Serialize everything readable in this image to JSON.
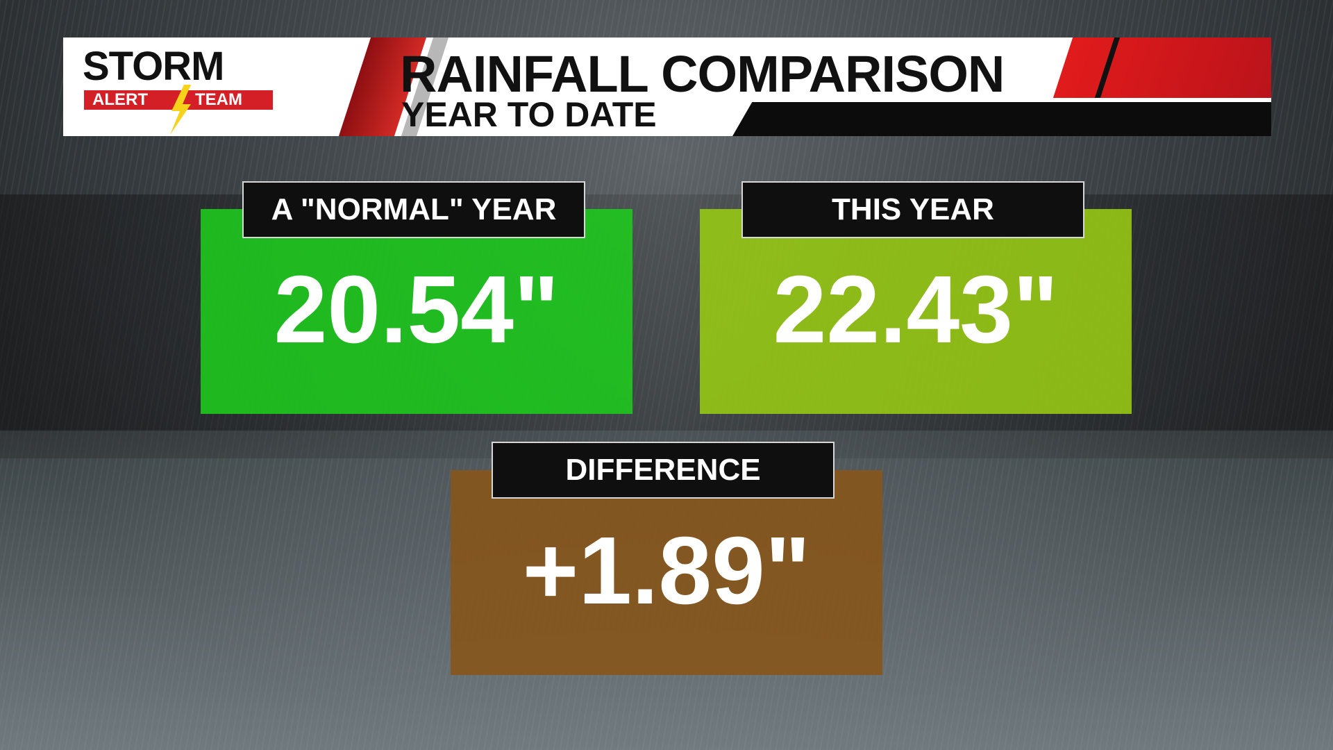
{
  "header": {
    "logo": {
      "top": "STORM",
      "bottom_left": "ALERT",
      "bottom_right": "TEAM"
    },
    "title": "RAINFALL COMPARISON",
    "subtitle": "YEAR TO DATE"
  },
  "cards": [
    {
      "label": "A \"NORMAL\" YEAR",
      "value": "20.54\""
    },
    {
      "label": "THIS YEAR",
      "value": "22.43\""
    },
    {
      "label": "DIFFERENCE",
      "value": "+1.89\""
    }
  ]
}
